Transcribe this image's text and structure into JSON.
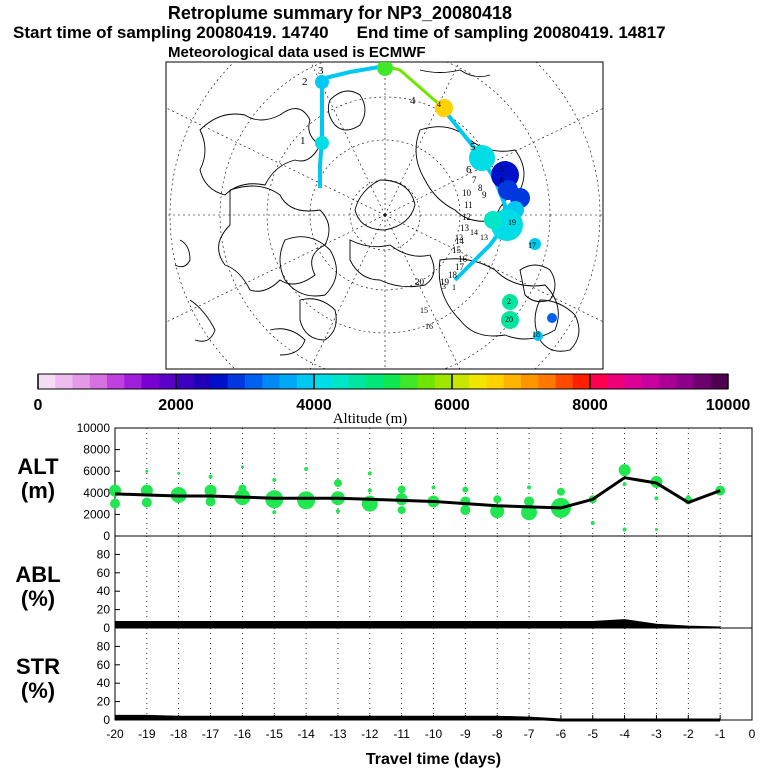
{
  "header": {
    "title": "Retroplume summary for NP3_20080418",
    "start_time": "Start time of sampling 20080419. 14740",
    "end_time": "End time of sampling 20080419. 14817",
    "met_data": "Meteorological data used is ECMWF"
  },
  "colorbar": {
    "label": "Altitude (m)",
    "ticks": [
      {
        "value": 0,
        "label": "0"
      },
      {
        "value": 2000,
        "label": "2000"
      },
      {
        "value": 4000,
        "label": "4000"
      },
      {
        "value": 6000,
        "label": "6000"
      },
      {
        "value": 8000,
        "label": "8000"
      },
      {
        "value": 10000,
        "label": "10000"
      }
    ],
    "colors": [
      "#f5dcf5",
      "#eebcef",
      "#e59ae8",
      "#d66fe0",
      "#bf3fe0",
      "#a01fdc",
      "#7a00d2",
      "#5a00c8",
      "#3c00c0",
      "#1e00b9",
      "#0010c8",
      "#0038e0",
      "#0060f0",
      "#0088f5",
      "#00a8f5",
      "#00c8f0",
      "#00dde6",
      "#00e6c8",
      "#00e6a0",
      "#00e678",
      "#10e650",
      "#40e628",
      "#70e600",
      "#a0e600",
      "#c8e600",
      "#f0e600",
      "#ffd200",
      "#ffb400",
      "#ff9600",
      "#ff7800",
      "#ff4b00",
      "#ff1e00",
      "#ff0050",
      "#f00078",
      "#dc0096",
      "#c800a0",
      "#aa0096",
      "#8c008c",
      "#6e006e",
      "#500050"
    ]
  },
  "map": {
    "trajectory_labels": [
      "1",
      "2",
      "3",
      "4",
      "5",
      "6",
      "7",
      "8",
      "9",
      "10",
      "11",
      "12",
      "13",
      "14",
      "15",
      "16",
      "17",
      "18",
      "19",
      "20"
    ],
    "cluster_labels": [
      "1",
      "2",
      "3",
      "4",
      "5",
      "6",
      "12",
      "13",
      "14",
      "15",
      "16",
      "17",
      "18",
      "19",
      "20"
    ]
  },
  "chart_data": [
    {
      "type": "line",
      "name": "ALT",
      "ylabel": "ALT\n(m)",
      "ylabel_lines": [
        "ALT",
        "(m)"
      ],
      "ylim": [
        0,
        10000
      ],
      "yticks": [
        0,
        2000,
        4000,
        6000,
        8000,
        10000
      ],
      "xlim": [
        -20,
        0
      ],
      "x": [
        -20,
        -19,
        -18,
        -17,
        -16,
        -15,
        -14,
        -13,
        -12,
        -11,
        -10,
        -9,
        -8,
        -7,
        -6,
        -5,
        -4,
        -3,
        -2,
        -1
      ],
      "values": [
        3900,
        3800,
        3700,
        3700,
        3600,
        3500,
        3500,
        3500,
        3400,
        3300,
        3200,
        3000,
        2800,
        2700,
        2600,
        3400,
        5400,
        4900,
        3100,
        4200
      ],
      "bubbles": [
        {
          "x": -20,
          "y": 4200,
          "s": 6
        },
        {
          "x": -20,
          "y": 3000,
          "s": 5
        },
        {
          "x": -19,
          "y": 4200,
          "s": 6
        },
        {
          "x": -19,
          "y": 3100,
          "s": 5
        },
        {
          "x": -19,
          "y": 6000,
          "s": 1.5
        },
        {
          "x": -18,
          "y": 3800,
          "s": 8
        },
        {
          "x": -18,
          "y": 5800,
          "s": 1.5
        },
        {
          "x": -17,
          "y": 4200,
          "s": 6
        },
        {
          "x": -17,
          "y": 3200,
          "s": 5
        },
        {
          "x": -17,
          "y": 5500,
          "s": 2
        },
        {
          "x": -16,
          "y": 3600,
          "s": 8
        },
        {
          "x": -16,
          "y": 4400,
          "s": 4
        },
        {
          "x": -16,
          "y": 6400,
          "s": 1.5
        },
        {
          "x": -15,
          "y": 3400,
          "s": 9
        },
        {
          "x": -15,
          "y": 2200,
          "s": 2
        },
        {
          "x": -15,
          "y": 5200,
          "s": 2
        },
        {
          "x": -14,
          "y": 3300,
          "s": 9
        },
        {
          "x": -14,
          "y": 6200,
          "s": 2
        },
        {
          "x": -13,
          "y": 3500,
          "s": 7
        },
        {
          "x": -13,
          "y": 4900,
          "s": 4
        },
        {
          "x": -13,
          "y": 2300,
          "s": 2
        },
        {
          "x": -12,
          "y": 3000,
          "s": 8
        },
        {
          "x": -12,
          "y": 5800,
          "s": 2
        },
        {
          "x": -12,
          "y": 4200,
          "s": 2
        },
        {
          "x": -11,
          "y": 3400,
          "s": 6
        },
        {
          "x": -11,
          "y": 4300,
          "s": 4
        },
        {
          "x": -11,
          "y": 2400,
          "s": 4
        },
        {
          "x": -10,
          "y": 3200,
          "s": 6
        },
        {
          "x": -10,
          "y": 4500,
          "s": 2
        },
        {
          "x": -9,
          "y": 3200,
          "s": 5
        },
        {
          "x": -9,
          "y": 2400,
          "s": 5
        },
        {
          "x": -9,
          "y": 4300,
          "s": 3
        },
        {
          "x": -8,
          "y": 2300,
          "s": 7
        },
        {
          "x": -8,
          "y": 3400,
          "s": 4
        },
        {
          "x": -7,
          "y": 2200,
          "s": 8
        },
        {
          "x": -7,
          "y": 3200,
          "s": 5
        },
        {
          "x": -7,
          "y": 4500,
          "s": 2
        },
        {
          "x": -6,
          "y": 2600,
          "s": 10
        },
        {
          "x": -6,
          "y": 4100,
          "s": 4
        },
        {
          "x": -5,
          "y": 3400,
          "s": 4
        },
        {
          "x": -5,
          "y": 1200,
          "s": 2
        },
        {
          "x": -4,
          "y": 6100,
          "s": 6
        },
        {
          "x": -4,
          "y": 4800,
          "s": 2
        },
        {
          "x": -4,
          "y": 600,
          "s": 2
        },
        {
          "x": -3,
          "y": 5000,
          "s": 6
        },
        {
          "x": -3,
          "y": 3500,
          "s": 2
        },
        {
          "x": -3,
          "y": 600,
          "s": 1.5
        },
        {
          "x": -2,
          "y": 3300,
          "s": 4
        },
        {
          "x": -2,
          "y": 3600,
          "s": 2
        },
        {
          "x": -1,
          "y": 4200,
          "s": 5
        },
        {
          "x": -1,
          "y": 4000,
          "s": 2
        }
      ]
    },
    {
      "type": "area",
      "name": "ABL",
      "ylabel_lines": [
        "ABL",
        "(%)"
      ],
      "ylim": [
        0,
        100
      ],
      "yticks": [
        0,
        20,
        40,
        60,
        80
      ],
      "xlim": [
        -20,
        0
      ],
      "x": [
        -20,
        -19,
        -18,
        -17,
        -16,
        -15,
        -14,
        -13,
        -12,
        -11,
        -10,
        -9,
        -8,
        -7,
        -6,
        -5,
        -4,
        -3,
        -2,
        -1
      ],
      "values": [
        6,
        6,
        6,
        6,
        6,
        6,
        6,
        6,
        6,
        6,
        6,
        6,
        6,
        6,
        6,
        6,
        8,
        3,
        1,
        0
      ]
    },
    {
      "type": "area",
      "name": "STR",
      "ylabel_lines": [
        "STR",
        "(%)"
      ],
      "ylim": [
        0,
        100
      ],
      "yticks": [
        0,
        20,
        40,
        60,
        80
      ],
      "xlim": [
        -20,
        0
      ],
      "xlabel": "Travel time (days)",
      "xticks": [
        -20,
        -19,
        -18,
        -17,
        -16,
        -15,
        -14,
        -13,
        -12,
        -11,
        -10,
        -9,
        -8,
        -7,
        -6,
        -5,
        -4,
        -3,
        -2,
        -1,
        0
      ],
      "x": [
        -20,
        -19,
        -18,
        -17,
        -16,
        -15,
        -14,
        -13,
        -12,
        -11,
        -10,
        -9,
        -8,
        -7,
        -6,
        -5,
        -4,
        -3,
        -2,
        -1
      ],
      "values": [
        4,
        4,
        3,
        3,
        3,
        3,
        3,
        3,
        3,
        3,
        3,
        3,
        3,
        2,
        0,
        0,
        0,
        0,
        0,
        0
      ]
    }
  ]
}
